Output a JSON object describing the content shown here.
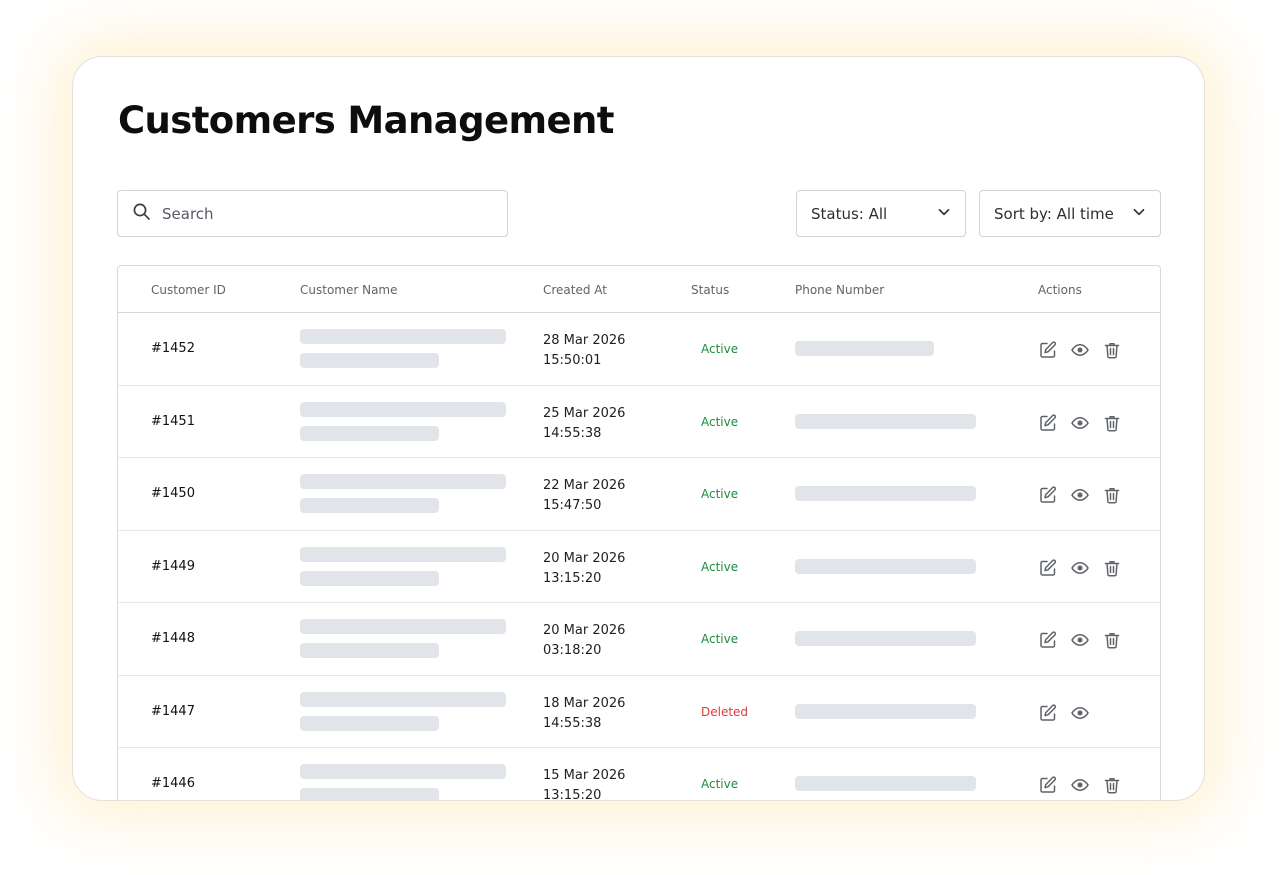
{
  "page": {
    "title": "Customers Management"
  },
  "search": {
    "placeholder": "Search"
  },
  "filters": {
    "status_label": "Status: All",
    "sort_label": "Sort by: All time"
  },
  "table": {
    "columns": [
      "Customer ID",
      "Customer Name",
      "Created At",
      "Status",
      "Phone Number",
      "Actions"
    ],
    "rows": [
      {
        "id": "#1452",
        "date": "28 Mar 2026",
        "time": "15:50:01",
        "status": "Active",
        "has_delete": true
      },
      {
        "id": "#1451",
        "date": "25 Mar 2026",
        "time": "14:55:38",
        "status": "Active",
        "has_delete": true
      },
      {
        "id": "#1450",
        "date": "22 Mar 2026",
        "time": "15:47:50",
        "status": "Active",
        "has_delete": true
      },
      {
        "id": "#1449",
        "date": "20 Mar 2026",
        "time": "13:15:20",
        "status": "Active",
        "has_delete": true
      },
      {
        "id": "#1448",
        "date": "20 Mar 2026",
        "time": "03:18:20",
        "status": "Active",
        "has_delete": true
      },
      {
        "id": "#1447",
        "date": "18 Mar 2026",
        "time": "14:55:38",
        "status": "Deleted",
        "has_delete": false
      },
      {
        "id": "#1446",
        "date": "15 Mar 2026",
        "time": "13:15:20",
        "status": "Active",
        "has_delete": true
      }
    ]
  },
  "colors": {
    "active": "#1e8e3e",
    "deleted": "#e03a3a",
    "skeleton": "#e1e5ea",
    "icon": "#5f6368"
  },
  "icons": [
    "search-icon",
    "chevron-down-icon",
    "edit-icon",
    "eye-icon",
    "trash-icon"
  ]
}
